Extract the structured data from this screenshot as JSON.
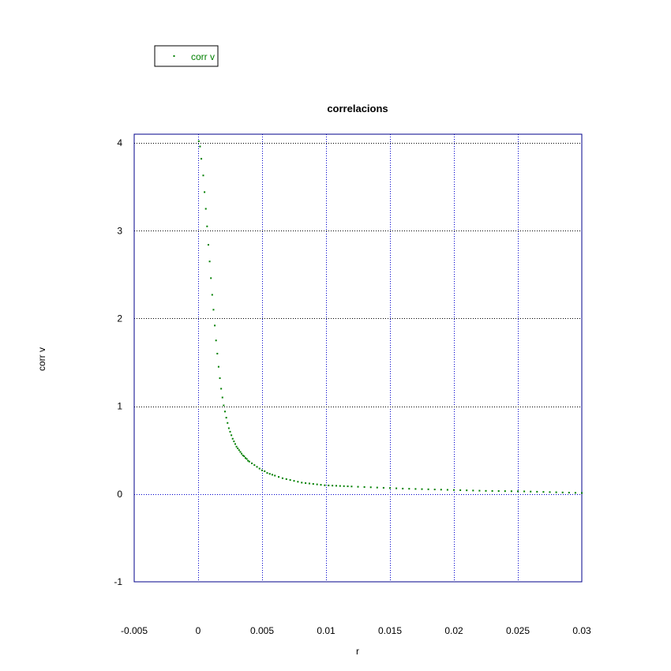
{
  "chart_data": {
    "type": "scatter",
    "title": "correlacions",
    "xlabel": "r",
    "ylabel": "corr v",
    "xlim": [
      -0.005,
      0.03
    ],
    "ylim": [
      -1,
      4.1
    ],
    "xticks": [
      -0.005,
      0,
      0.005,
      0.01,
      0.015,
      0.02,
      0.025,
      0.03
    ],
    "xtick_labels": [
      "-0.005",
      "0",
      "0.005",
      "0.01",
      "0.015",
      "0.02",
      "0.025",
      "0.03"
    ],
    "yticks": [
      -1,
      0,
      1,
      2,
      3,
      4
    ],
    "ytick_labels": [
      "-1",
      "0",
      "1",
      "2",
      "3",
      "4"
    ],
    "grid": true,
    "legend_position": "top-left, outside plot",
    "colors": {
      "series": "#007f00",
      "frame": "#00008b",
      "grid_blue": "#0000cc",
      "grid_black": "#000000"
    },
    "series": [
      {
        "name": "corr v",
        "x": [
          5e-05,
          0.00015,
          0.00025,
          0.0004,
          0.0005,
          0.0006,
          0.0007,
          0.0008,
          0.0009,
          0.001,
          0.0011,
          0.0012,
          0.0013,
          0.0014,
          0.0015,
          0.0016,
          0.0017,
          0.0018,
          0.0019,
          0.002,
          0.0021,
          0.0022,
          0.0023,
          0.0024,
          0.0025,
          0.0026,
          0.0027,
          0.0028,
          0.0029,
          0.003,
          0.0031,
          0.0032,
          0.0033,
          0.0034,
          0.0035,
          0.0036,
          0.0037,
          0.0038,
          0.0039,
          0.004,
          0.0042,
          0.0044,
          0.0046,
          0.0048,
          0.005,
          0.0052,
          0.0054,
          0.0056,
          0.0058,
          0.006,
          0.0063,
          0.0066,
          0.0069,
          0.0072,
          0.0075,
          0.0078,
          0.0081,
          0.0084,
          0.0087,
          0.009,
          0.0093,
          0.0096,
          0.0099,
          0.0102,
          0.0105,
          0.0108,
          0.0111,
          0.0114,
          0.0117,
          0.012,
          0.0125,
          0.013,
          0.0135,
          0.014,
          0.0145,
          0.015,
          0.0155,
          0.016,
          0.0165,
          0.017,
          0.0175,
          0.018,
          0.0185,
          0.019,
          0.0195,
          0.02,
          0.0205,
          0.021,
          0.0215,
          0.022,
          0.0225,
          0.023,
          0.0235,
          0.024,
          0.0245,
          0.025,
          0.0255,
          0.026,
          0.0265,
          0.027,
          0.0275,
          0.028,
          0.0285,
          0.029,
          0.0295,
          0.03
        ],
        "y": [
          4.02,
          3.96,
          3.82,
          3.63,
          3.44,
          3.25,
          3.05,
          2.84,
          2.65,
          2.46,
          2.27,
          2.1,
          1.92,
          1.75,
          1.6,
          1.45,
          1.32,
          1.2,
          1.1,
          1.01,
          0.94,
          0.87,
          0.81,
          0.75,
          0.71,
          0.67,
          0.63,
          0.6,
          0.57,
          0.54,
          0.52,
          0.5,
          0.48,
          0.46,
          0.44,
          0.43,
          0.41,
          0.4,
          0.38,
          0.37,
          0.35,
          0.33,
          0.31,
          0.29,
          0.27,
          0.26,
          0.24,
          0.23,
          0.22,
          0.21,
          0.195,
          0.18,
          0.17,
          0.16,
          0.15,
          0.14,
          0.13,
          0.125,
          0.12,
          0.115,
          0.11,
          0.105,
          0.1,
          0.098,
          0.096,
          0.094,
          0.092,
          0.09,
          0.088,
          0.086,
          0.083,
          0.08,
          0.077,
          0.074,
          0.071,
          0.068,
          0.065,
          0.062,
          0.06,
          0.058,
          0.056,
          0.054,
          0.052,
          0.05,
          0.048,
          0.046,
          0.044,
          0.042,
          0.04,
          0.038,
          0.036,
          0.035,
          0.034,
          0.033,
          0.032,
          0.031,
          0.03,
          0.028,
          0.026,
          0.024,
          0.022,
          0.02,
          0.018,
          0.016,
          0.014,
          0.012
        ]
      }
    ]
  }
}
